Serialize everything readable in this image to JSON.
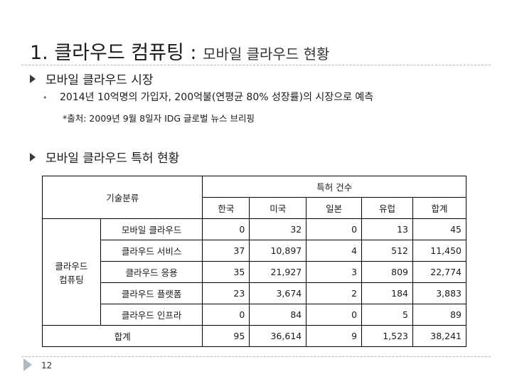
{
  "slide": {
    "title_main": "1. 클라우드 컴퓨팅 : ",
    "title_sub": "모바일 클라우드 현황",
    "page_number": "12"
  },
  "bullets": {
    "market_heading": "모바일 클라우드 시장",
    "market_detail": "2014년 10억명의 가입자, 200억불(연평균 80% 성장률)의 시장으로 예측",
    "market_source": "*출처: 2009년 9월 8일자 IDG 글로벌 뉴스 브리핑",
    "patent_heading": "모바일 클라우드 특허 현황"
  },
  "table": {
    "header_category": "기술분류",
    "header_group": "특허 건수",
    "columns": [
      "한국",
      "미국",
      "일본",
      "유럽",
      "합계"
    ],
    "row_group_label_line1": "클라우드",
    "row_group_label_line2": "컴퓨팅",
    "rows": [
      {
        "label": "모바일 클라우드",
        "values": [
          "0",
          "32",
          "0",
          "13",
          "45"
        ]
      },
      {
        "label": "클라우드 서비스",
        "values": [
          "37",
          "10,897",
          "4",
          "512",
          "11,450"
        ]
      },
      {
        "label": "클라우드 응용",
        "values": [
          "35",
          "21,927",
          "3",
          "809",
          "22,774"
        ]
      },
      {
        "label": "클라우드 플랫폼",
        "values": [
          "23",
          "3,674",
          "2",
          "184",
          "3,883"
        ]
      },
      {
        "label": "클라우드 인프라",
        "values": [
          "0",
          "84",
          "0",
          "5",
          "89"
        ]
      }
    ],
    "total": {
      "label": "합계",
      "values": [
        "95",
        "36,614",
        "9",
        "1,523",
        "38,241"
      ]
    }
  }
}
